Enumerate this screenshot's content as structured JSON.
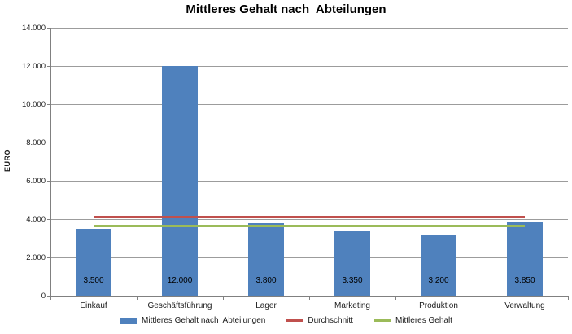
{
  "chart": {
    "title": "Mittleres Gehalt nach  Abteilungen",
    "y_axis_title": "EURO"
  },
  "chart_data": {
    "type": "bar",
    "title": "Mittleres Gehalt nach  Abteilungen",
    "xlabel": "",
    "ylabel": "EURO",
    "categories": [
      "Einkauf",
      "Geschäftsführung",
      "Lager",
      "Marketing",
      "Produktion",
      "Verwaltung"
    ],
    "series": [
      {
        "name": "Mittleres Gehalt nach  Abteilungen",
        "type": "bar",
        "color": "#4f81bd",
        "values": [
          3500,
          12000,
          3800,
          3350,
          3200,
          3850
        ],
        "data_labels": [
          "3.500",
          "12.000",
          "3.800",
          "3.350",
          "3.200",
          "3.850"
        ]
      },
      {
        "name": "Durchschnitt",
        "type": "line",
        "color": "#c0504d",
        "values": [
          4100,
          4100,
          4100,
          4100,
          4100,
          4100
        ]
      },
      {
        "name": "Mittleres Gehalt",
        "type": "line",
        "color": "#9bbb59",
        "values": [
          3650,
          3650,
          3650,
          3650,
          3650,
          3650
        ]
      }
    ],
    "ylim": [
      0,
      14000
    ],
    "ytick_step": 2000,
    "ytick_labels": [
      "0",
      "2.000",
      "4.000",
      "6.000",
      "8.000",
      "10.000",
      "12.000",
      "14.000"
    ],
    "grid": true,
    "legend_position": "bottom"
  },
  "colors": {
    "bar": "#4f81bd",
    "average_line": "#c0504d",
    "median_line": "#9bbb59",
    "gridline": "#9c9c9c",
    "axis": "#808080",
    "text": "#000000",
    "background": "#ffffff"
  }
}
